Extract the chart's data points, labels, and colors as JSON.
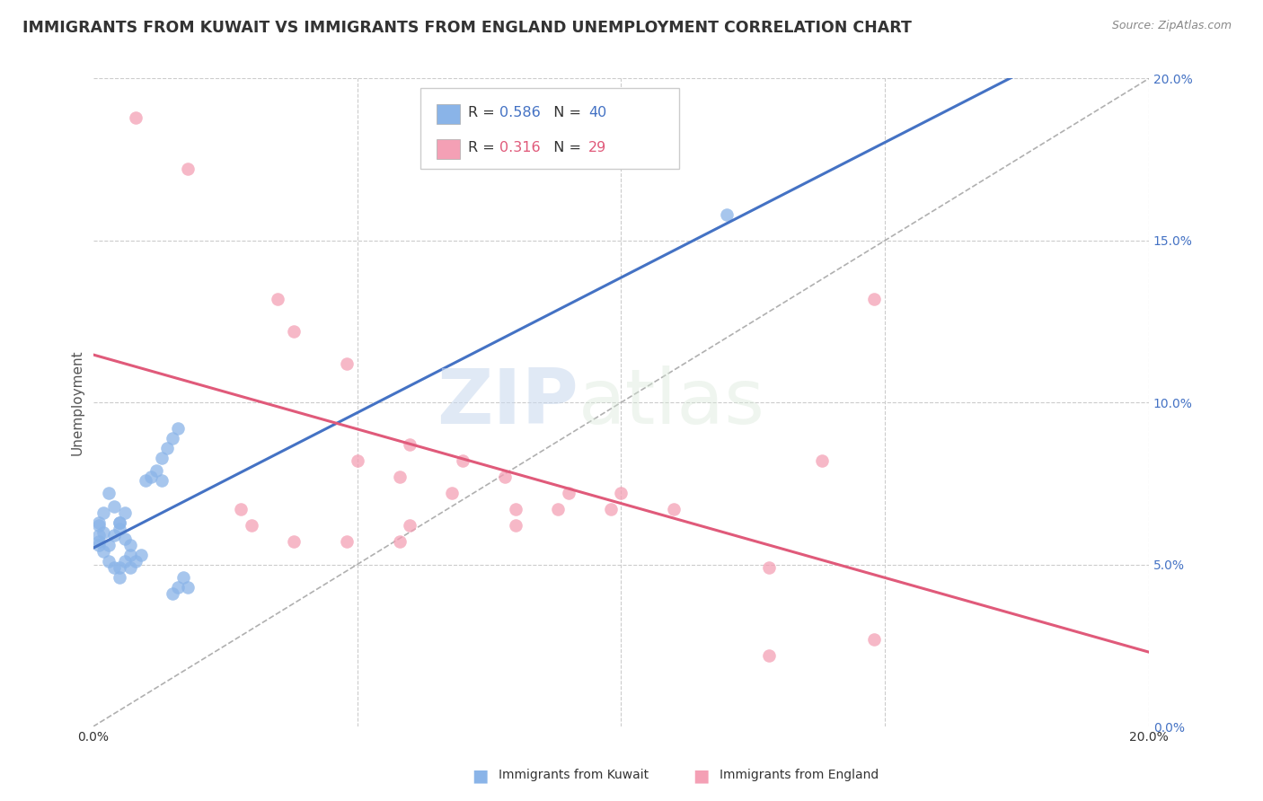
{
  "title": "IMMIGRANTS FROM KUWAIT VS IMMIGRANTS FROM ENGLAND UNEMPLOYMENT CORRELATION CHART",
  "source": "Source: ZipAtlas.com",
  "ylabel": "Unemployment",
  "R_kuwait": 0.586,
  "N_kuwait": 40,
  "R_england": 0.316,
  "N_england": 29,
  "kuwait_color": "#8ab4e8",
  "england_color": "#f4a0b5",
  "kuwait_line_color": "#4472c4",
  "england_line_color": "#e05a7a",
  "kuwait_scatter": [
    [
      0.005,
      0.063
    ],
    [
      0.006,
      0.058
    ],
    [
      0.003,
      0.072
    ],
    [
      0.004,
      0.068
    ],
    [
      0.002,
      0.06
    ],
    [
      0.001,
      0.062
    ],
    [
      0.001,
      0.057
    ],
    [
      0.002,
      0.054
    ],
    [
      0.003,
      0.051
    ],
    [
      0.004,
      0.049
    ],
    [
      0.005,
      0.046
    ],
    [
      0.005,
      0.049
    ],
    [
      0.006,
      0.051
    ],
    [
      0.007,
      0.053
    ],
    [
      0.007,
      0.049
    ],
    [
      0.008,
      0.051
    ],
    [
      0.009,
      0.053
    ],
    [
      0.01,
      0.076
    ],
    [
      0.011,
      0.077
    ],
    [
      0.012,
      0.079
    ],
    [
      0.013,
      0.076
    ],
    [
      0.001,
      0.059
    ],
    [
      0.001,
      0.056
    ],
    [
      0.001,
      0.063
    ],
    [
      0.002,
      0.066
    ],
    [
      0.003,
      0.056
    ],
    [
      0.004,
      0.059
    ],
    [
      0.005,
      0.061
    ],
    [
      0.005,
      0.063
    ],
    [
      0.006,
      0.066
    ],
    [
      0.007,
      0.056
    ],
    [
      0.013,
      0.083
    ],
    [
      0.014,
      0.086
    ],
    [
      0.015,
      0.089
    ],
    [
      0.016,
      0.092
    ],
    [
      0.017,
      0.046
    ],
    [
      0.018,
      0.043
    ],
    [
      0.016,
      0.043
    ],
    [
      0.015,
      0.041
    ],
    [
      0.12,
      0.158
    ]
  ],
  "england_scatter": [
    [
      0.008,
      0.188
    ],
    [
      0.018,
      0.172
    ],
    [
      0.035,
      0.132
    ],
    [
      0.038,
      0.122
    ],
    [
      0.048,
      0.112
    ],
    [
      0.05,
      0.082
    ],
    [
      0.058,
      0.077
    ],
    [
      0.06,
      0.087
    ],
    [
      0.068,
      0.072
    ],
    [
      0.07,
      0.082
    ],
    [
      0.078,
      0.077
    ],
    [
      0.08,
      0.067
    ],
    [
      0.08,
      0.062
    ],
    [
      0.088,
      0.067
    ],
    [
      0.09,
      0.072
    ],
    [
      0.098,
      0.067
    ],
    [
      0.1,
      0.072
    ],
    [
      0.11,
      0.067
    ],
    [
      0.028,
      0.067
    ],
    [
      0.03,
      0.062
    ],
    [
      0.038,
      0.057
    ],
    [
      0.048,
      0.057
    ],
    [
      0.058,
      0.057
    ],
    [
      0.06,
      0.062
    ],
    [
      0.138,
      0.082
    ],
    [
      0.128,
      0.049
    ],
    [
      0.148,
      0.027
    ],
    [
      0.128,
      0.022
    ],
    [
      0.148,
      0.132
    ]
  ],
  "background_color": "#ffffff",
  "xlim": [
    0.0,
    0.2
  ],
  "ylim": [
    0.0,
    0.2
  ]
}
